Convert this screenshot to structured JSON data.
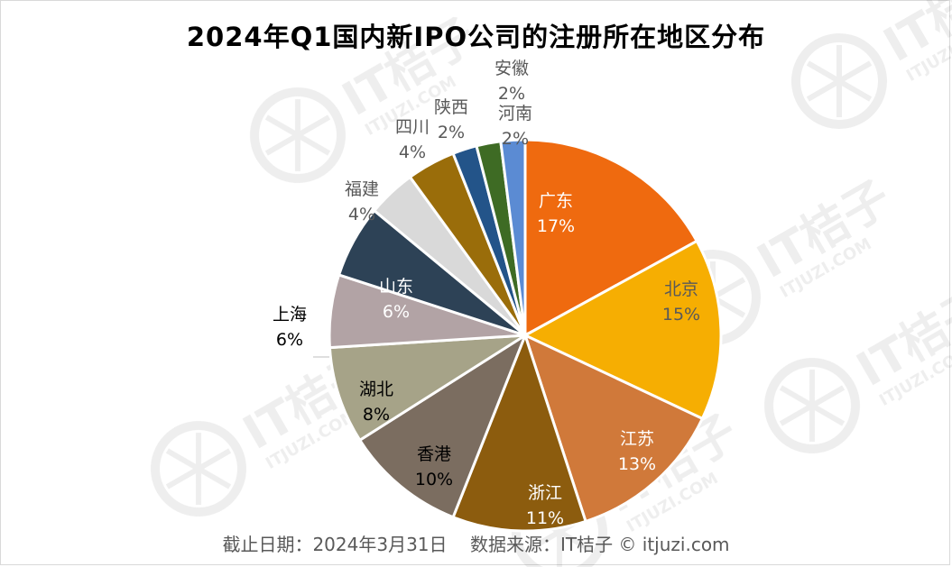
{
  "chart_data": {
    "type": "pie",
    "title": "2024年Q1国内新IPO公司的注册所在地区分布",
    "slices": [
      {
        "label": "广东",
        "pct": "17%",
        "value": 17,
        "color": "#ef6a0f",
        "text_color": "#ffffff"
      },
      {
        "label": "北京",
        "pct": "15%",
        "value": 15,
        "color": "#f6ae02",
        "text_color": "#595959"
      },
      {
        "label": "江苏",
        "pct": "13%",
        "value": 13,
        "color": "#d0793a",
        "text_color": "#ffffff"
      },
      {
        "label": "浙江",
        "pct": "11%",
        "value": 11,
        "color": "#8c5c0e",
        "text_color": "#ffffff"
      },
      {
        "label": "香港",
        "pct": "10%",
        "value": 10,
        "color": "#7b6d60",
        "text_color": "#000000"
      },
      {
        "label": "湖北",
        "pct": "8%",
        "value": 8,
        "color": "#a6a388",
        "text_color": "#000000"
      },
      {
        "label": "上海",
        "pct": "6%",
        "value": 6,
        "color": "#b2a3a5",
        "text_color": "#000000"
      },
      {
        "label": "山东",
        "pct": "6%",
        "value": 6,
        "color": "#2d4256",
        "text_color": "#ffffff"
      },
      {
        "label": "福建",
        "pct": "4%",
        "value": 4,
        "color": "#d9d9d9",
        "text_color": "#595959"
      },
      {
        "label": "四川",
        "pct": "4%",
        "value": 4,
        "color": "#9a6d0a",
        "text_color": "#595959"
      },
      {
        "label": "陕西",
        "pct": "2%",
        "value": 2,
        "color": "#235489",
        "text_color": "#595959"
      },
      {
        "label": "安徽",
        "pct": "2%",
        "value": 2,
        "color": "#3e6b24",
        "text_color": "#595959"
      },
      {
        "label": "河南",
        "pct": "2%",
        "value": 2,
        "color": "#5b8bd3",
        "text_color": "#595959"
      }
    ]
  },
  "footer": "截止日期：2024年3月31日    数据来源：IT桔子 © itjuzi.com",
  "watermark": {
    "brand": "IT桔子",
    "url": "ITJUZI.COM",
    "icon": "orange-slice-icon"
  }
}
